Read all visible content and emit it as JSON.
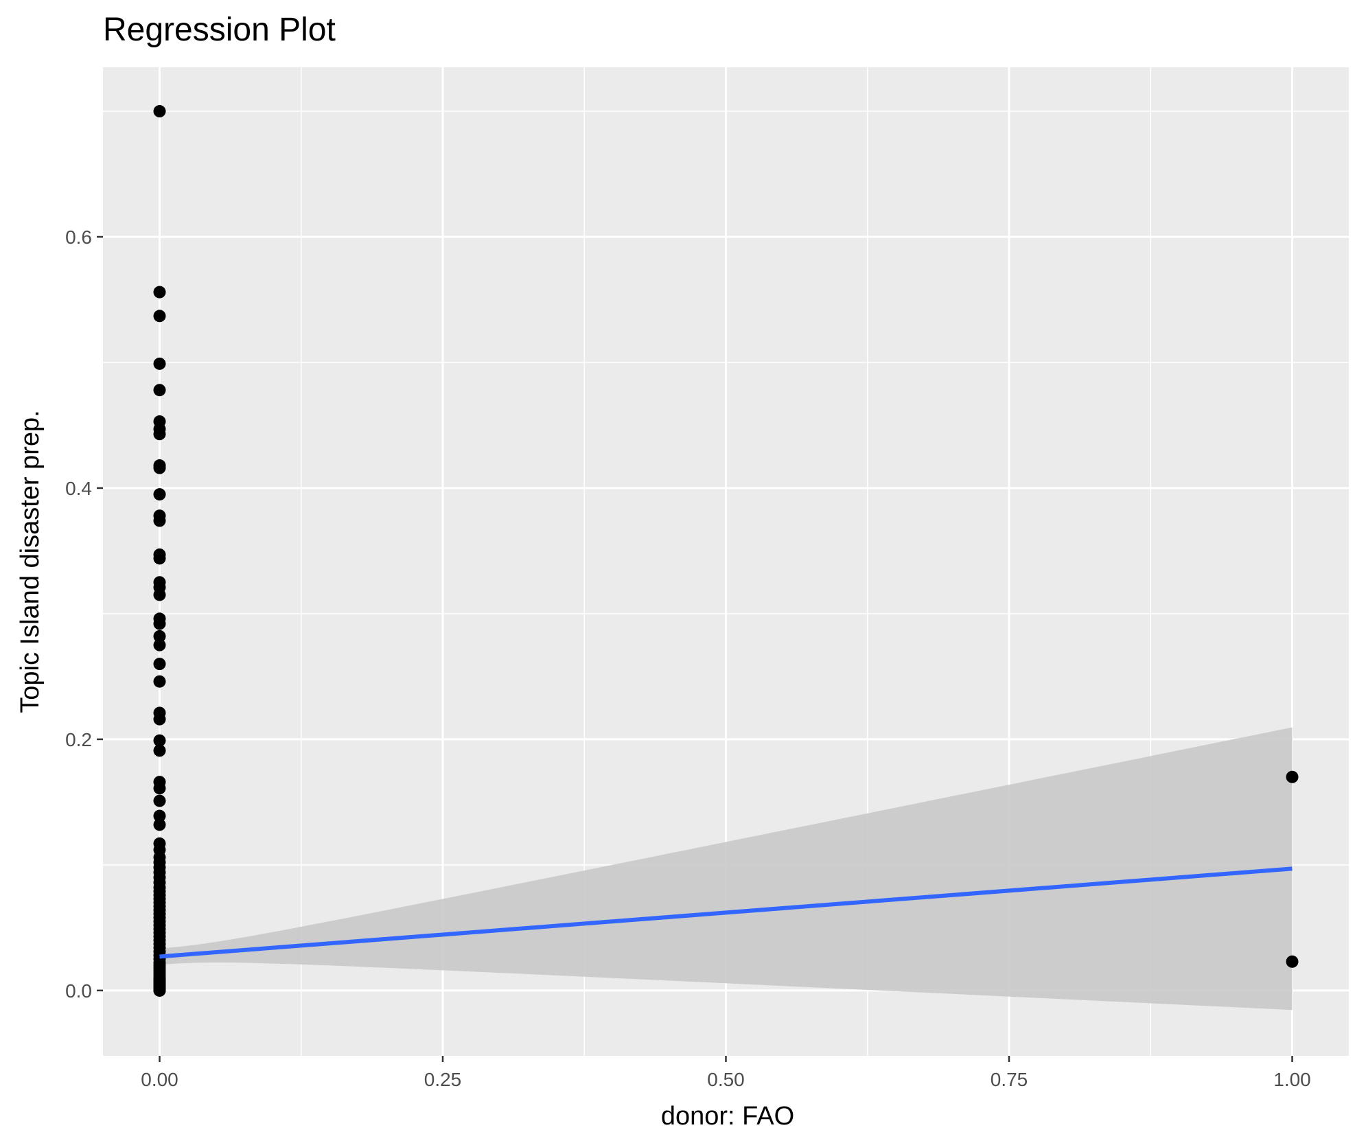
{
  "chart_data": {
    "type": "scatter",
    "title": "Regression Plot",
    "xlabel": "donor: FAO",
    "ylabel": "Topic Island disaster prep.",
    "xlim": [
      -0.05,
      1.05
    ],
    "ylim": [
      -0.052,
      0.735
    ],
    "x_ticks": [
      0.0,
      0.25,
      0.5,
      0.75,
      1.0
    ],
    "x_tick_labels": [
      "0.00",
      "0.25",
      "0.50",
      "0.75",
      "1.00"
    ],
    "y_ticks": [
      0.0,
      0.2,
      0.4,
      0.6
    ],
    "y_tick_labels": [
      "0.0",
      "0.2",
      "0.4",
      "0.6"
    ],
    "grid": true,
    "colors": {
      "panel_background": "#ebebeb",
      "grid": "#ffffff",
      "points": "#000000",
      "regression_line": "#3366ff",
      "confidence_band": "#c9c9c9"
    },
    "points": {
      "x": [
        0,
        0,
        0,
        0,
        0,
        0,
        0,
        0,
        0,
        0,
        0,
        0,
        0,
        0,
        0,
        0,
        0,
        0,
        0,
        0,
        0,
        0,
        0,
        0,
        0,
        0,
        0,
        0,
        0,
        0,
        0,
        0,
        0,
        0,
        0,
        0,
        0,
        0,
        0,
        0,
        0,
        0,
        0,
        0,
        0,
        0,
        0,
        0,
        0,
        0,
        0,
        0,
        0,
        0,
        0,
        0,
        0,
        0,
        0,
        0,
        0,
        0,
        0,
        0,
        0,
        0,
        0,
        0,
        0,
        0,
        0,
        0,
        0,
        0,
        0,
        0,
        0,
        0,
        0,
        0,
        1,
        1
      ],
      "y": [
        0.7,
        0.556,
        0.537,
        0.499,
        0.478,
        0.453,
        0.447,
        0.443,
        0.418,
        0.416,
        0.395,
        0.378,
        0.374,
        0.347,
        0.344,
        0.325,
        0.321,
        0.315,
        0.296,
        0.292,
        0.282,
        0.275,
        0.26,
        0.246,
        0.221,
        0.216,
        0.199,
        0.191,
        0.166,
        0.161,
        0.151,
        0.139,
        0.132,
        0.117,
        0.112,
        0.106,
        0.102,
        0.098,
        0.094,
        0.09,
        0.086,
        0.082,
        0.079,
        0.076,
        0.073,
        0.07,
        0.067,
        0.064,
        0.061,
        0.058,
        0.055,
        0.052,
        0.049,
        0.046,
        0.043,
        0.04,
        0.037,
        0.034,
        0.031,
        0.028,
        0.025,
        0.022,
        0.02,
        0.018,
        0.016,
        0.014,
        0.012,
        0.01,
        0.009,
        0.008,
        0.007,
        0.006,
        0.005,
        0.004,
        0.003,
        0.002,
        0.001,
        0.0,
        0.0,
        0.0,
        0.17,
        0.023
      ]
    },
    "regression": {
      "x": [
        0,
        1
      ],
      "y": [
        0.027,
        0.097
      ],
      "ci_upper": [
        0.034,
        0.209
      ],
      "ci_lower": [
        0.021,
        -0.016
      ]
    }
  }
}
